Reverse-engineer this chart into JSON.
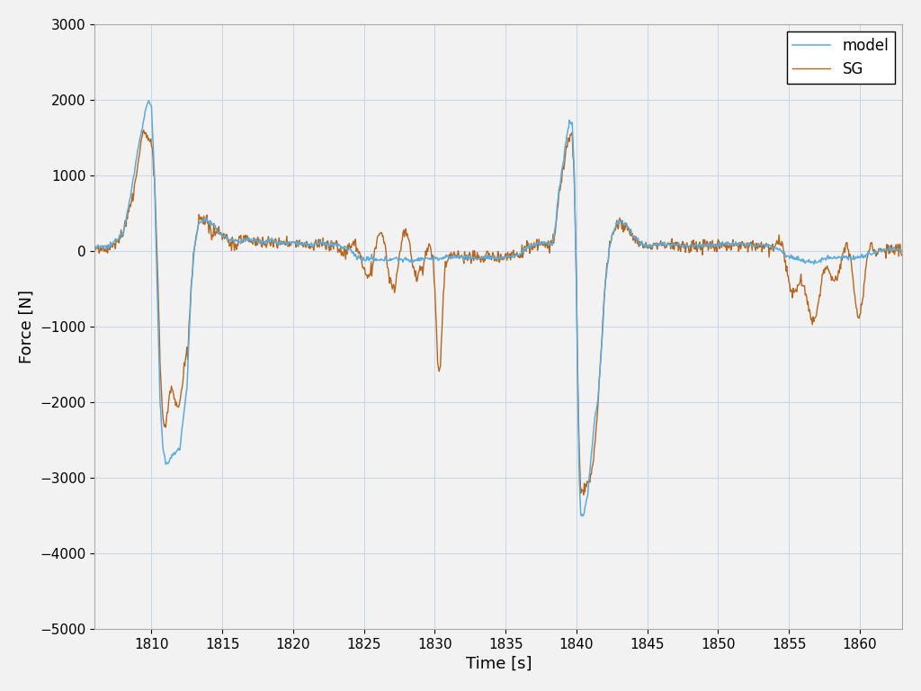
{
  "xlim": [
    1806,
    1863
  ],
  "ylim": [
    -5000,
    3000
  ],
  "xticks": [
    1810,
    1815,
    1820,
    1825,
    1830,
    1835,
    1840,
    1845,
    1850,
    1855,
    1860
  ],
  "yticks": [
    -5000,
    -4000,
    -3000,
    -2000,
    -1000,
    0,
    1000,
    2000,
    3000
  ],
  "xlabel": "Time [s]",
  "ylabel": "Force [N]",
  "model_color": "#5aabde",
  "sg_color": "#b5651d",
  "legend_labels": [
    "model",
    "SG"
  ],
  "grid_color": "#c8d4e8",
  "background_color": "#f2f2f2",
  "linewidth_model": 1.1,
  "linewidth_sg": 1.0,
  "legend_loc": "upper right"
}
